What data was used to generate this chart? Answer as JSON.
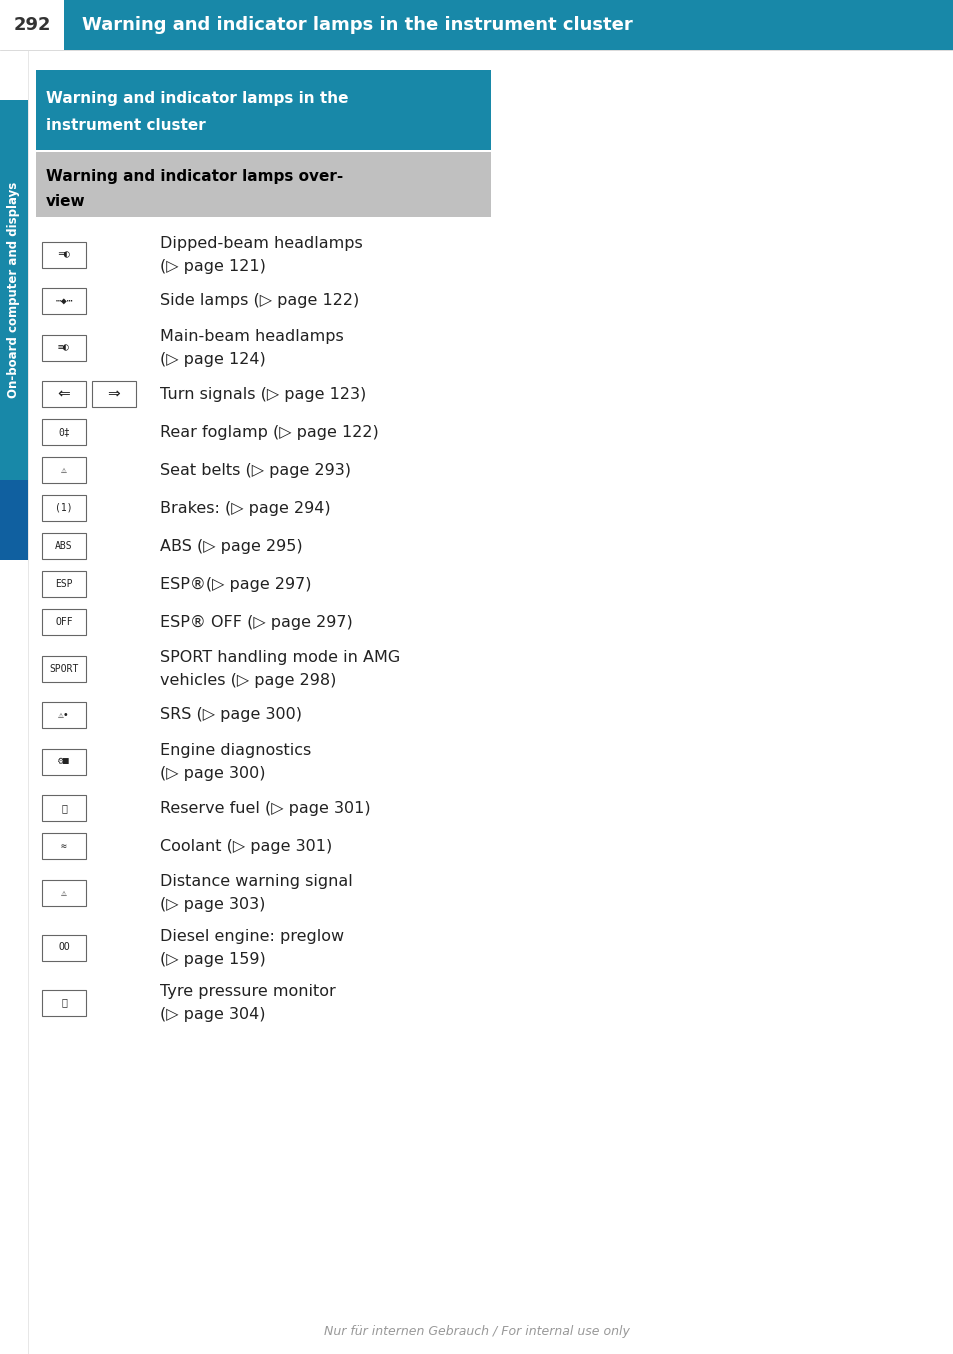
{
  "page_number": "292",
  "header_title": "Warning and indicator lamps in the instrument cluster",
  "header_bg": "#1888a8",
  "header_text_color": "#ffffff",
  "sidebar_text": "On-board computer and displays",
  "sidebar_bg": "#1888a8",
  "sidebar_text_color": "#ffffff",
  "section1_title_line1": "Warning and indicator lamps in the",
  "section1_title_line2": "instrument cluster",
  "section1_bg": "#1888a8",
  "section1_text_color": "#ffffff",
  "section2_title_line1": "Warning and indicator lamps over-",
  "section2_title_line2": "view",
  "section2_bg": "#c0c0c0",
  "section2_text_color": "#000000",
  "bg_color": "#ffffff",
  "body_text_color": "#222222",
  "icon_box_bg": "#ffffff",
  "icon_border": "#666666",
  "footer_text": "Nur für internen Gebrauch / For internal use only",
  "footer_color": "#999999",
  "items": [
    {
      "icon_char": "═◐",
      "text_line1": "Dipped-beam headlamps",
      "text_line2": "(▷ page 121)",
      "two_icons": false
    },
    {
      "icon_char": "⋯◆⋯",
      "text_line1": "Side lamps (▷ page 122)",
      "text_line2": "",
      "two_icons": false
    },
    {
      "icon_char": "≡◐",
      "text_line1": "Main-beam headlamps",
      "text_line2": "(▷ page 124)",
      "two_icons": false
    },
    {
      "icon_char": "⇐",
      "text_line1": "Turn signals (▷ page 123)",
      "text_line2": "",
      "two_icons": true
    },
    {
      "icon_char": "0‡",
      "text_line1": "Rear foglamp (▷ page 122)",
      "text_line2": "",
      "two_icons": false
    },
    {
      "icon_char": "⚠",
      "text_line1": "Seat belts (▷ page 293)",
      "text_line2": "",
      "two_icons": false
    },
    {
      "icon_char": "(1)",
      "text_line1": "Brakes: (▷ page 294)",
      "text_line2": "",
      "two_icons": false
    },
    {
      "icon_char": "ABS",
      "text_line1": "ABS (▷ page 295)",
      "text_line2": "",
      "two_icons": false
    },
    {
      "icon_char": "ESP",
      "text_line1": "ESP®(▷ page 297)",
      "text_line2": "",
      "two_icons": false
    },
    {
      "icon_char": "OFF",
      "text_line1": "ESP® OFF (▷ page 297)",
      "text_line2": "",
      "two_icons": false
    },
    {
      "icon_char": "SPORT",
      "text_line1": "SPORT handling mode in AMG",
      "text_line2": "vehicles (▷ page 298)",
      "two_icons": false
    },
    {
      "icon_char": "⚠•",
      "text_line1": "SRS (▷ page 300)",
      "text_line2": "",
      "two_icons": false
    },
    {
      "icon_char": "⚙■",
      "text_line1": "Engine diagnostics",
      "text_line2": "(▷ page 300)",
      "two_icons": false
    },
    {
      "icon_char": "⛽",
      "text_line1": "Reserve fuel (▷ page 301)",
      "text_line2": "",
      "two_icons": false
    },
    {
      "icon_char": "≈",
      "text_line1": "Coolant (▷ page 301)",
      "text_line2": "",
      "two_icons": false
    },
    {
      "icon_char": "⚠",
      "text_line1": "Distance warning signal",
      "text_line2": "(▷ page 303)",
      "two_icons": false
    },
    {
      "icon_char": "OO",
      "text_line1": "Diesel engine: preglow",
      "text_line2": "(▷ page 159)",
      "two_icons": false
    },
    {
      "icon_char": "⌛",
      "text_line1": "Tyre pressure monitor",
      "text_line2": "(▷ page 304)",
      "two_icons": false
    }
  ]
}
